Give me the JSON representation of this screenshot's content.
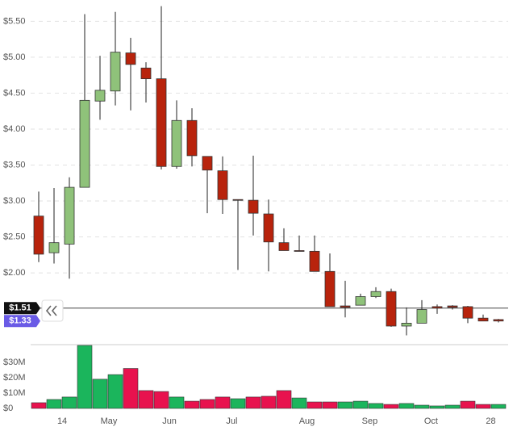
{
  "chart_data": [
    {
      "type": "candlestick",
      "ohlc": {
        "open": [
          2.79,
          2.28,
          2.4,
          3.19,
          4.39,
          4.53,
          5.06,
          4.85,
          4.7,
          3.48,
          4.12,
          3.62,
          3.42,
          3.02,
          3.01,
          2.82,
          2.42,
          2.31,
          2.3,
          2.02,
          1.54,
          1.55,
          1.67,
          1.74,
          1.26,
          1.3,
          1.53,
          1.54,
          1.53,
          1.37,
          1.35
        ],
        "high": [
          3.13,
          3.18,
          3.33,
          5.6,
          5.02,
          5.63,
          5.27,
          4.93,
          5.71,
          4.4,
          4.29,
          3.62,
          3.62,
          3.02,
          3.63,
          3.02,
          2.62,
          2.52,
          2.52,
          2.27,
          1.89,
          1.71,
          1.8,
          1.78,
          1.52,
          1.62,
          1.56,
          1.55,
          1.54,
          1.42,
          1.36
        ],
        "low": [
          2.15,
          2.13,
          1.92,
          3.19,
          4.13,
          4.33,
          4.26,
          4.37,
          3.44,
          3.45,
          3.48,
          2.83,
          2.82,
          2.04,
          2.52,
          2.02,
          2.31,
          2.3,
          2.02,
          1.53,
          1.38,
          1.55,
          1.65,
          1.25,
          1.13,
          1.3,
          1.43,
          1.49,
          1.3,
          1.33,
          1.31
        ],
        "close": [
          2.26,
          2.42,
          3.19,
          4.4,
          4.54,
          5.07,
          4.9,
          4.7,
          3.48,
          4.12,
          3.63,
          3.43,
          3.02,
          3.01,
          2.83,
          2.43,
          2.31,
          2.3,
          2.02,
          1.53,
          1.52,
          1.67,
          1.74,
          1.26,
          1.3,
          1.49,
          1.51,
          1.52,
          1.37,
          1.33,
          1.33
        ]
      },
      "up_color": "#8fc27a",
      "down_color": "#b8230c",
      "xlim": [
        -0.5,
        30.5
      ],
      "ylim": [
        1.08,
        5.74
      ],
      "yticks": [
        {
          "value": 2.0,
          "label": "$2.00"
        },
        {
          "value": 2.5,
          "label": "$2.50"
        },
        {
          "value": 3.0,
          "label": "$3.00"
        },
        {
          "value": 3.5,
          "label": "$3.50"
        },
        {
          "value": 4.0,
          "label": "$4.00"
        },
        {
          "value": 4.5,
          "label": "$4.50"
        },
        {
          "value": 5.0,
          "label": "$5.00"
        },
        {
          "value": 5.5,
          "label": "$5.50"
        }
      ],
      "grid": true,
      "markers": [
        {
          "value": 1.51,
          "label": "$1.51",
          "color": "#111111"
        },
        {
          "value": 1.33,
          "label": "$1.33",
          "color": "#6a5be6"
        }
      ]
    },
    {
      "type": "bar",
      "values": [
        3.7,
        5.8,
        7.4,
        41,
        19,
        22,
        26,
        11.6,
        11,
        7.4,
        4.7,
        5.8,
        7.4,
        6.3,
        7.4,
        7.9,
        11.6,
        6.8,
        4.2,
        4.2,
        4.2,
        4.7,
        3.2,
        2.6,
        3.2,
        2.1,
        1.6,
        2.1,
        4.7,
        2.6,
        2.6
      ],
      "colors": [
        "#e8124e",
        "#1bb55c",
        "#1bb55c",
        "#1bb55c",
        "#1bb55c",
        "#1bb55c",
        "#e8124e",
        "#e8124e",
        "#e8124e",
        "#1bb55c",
        "#e8124e",
        "#e8124e",
        "#e8124e",
        "#1bb55c",
        "#e8124e",
        "#e8124e",
        "#e8124e",
        "#1bb55c",
        "#e8124e",
        "#e8124e",
        "#1bb55c",
        "#1bb55c",
        "#1bb55c",
        "#e8124e",
        "#1bb55c",
        "#1bb55c",
        "#1bb55c",
        "#1bb55c",
        "#e8124e",
        "#e8124e",
        "#1bb55c"
      ],
      "xlim": [
        -0.5,
        30.5
      ],
      "ylim": [
        0,
        41
      ],
      "yticks": [
        {
          "value": 0,
          "label": "$0"
        },
        {
          "value": 10,
          "label": "$10M"
        },
        {
          "value": 20,
          "label": "$20M"
        },
        {
          "value": 30,
          "label": "$30M"
        }
      ],
      "xticks": [
        {
          "value": 1.53,
          "label": "14"
        },
        {
          "value": 4.58,
          "label": "May"
        },
        {
          "value": 8.53,
          "label": "Jun"
        },
        {
          "value": 12.6,
          "label": "Jul"
        },
        {
          "value": 17.5,
          "label": "Aug"
        },
        {
          "value": 21.6,
          "label": "Sep"
        },
        {
          "value": 25.6,
          "label": "Oct"
        },
        {
          "value": 29.5,
          "label": "28"
        }
      ]
    }
  ]
}
